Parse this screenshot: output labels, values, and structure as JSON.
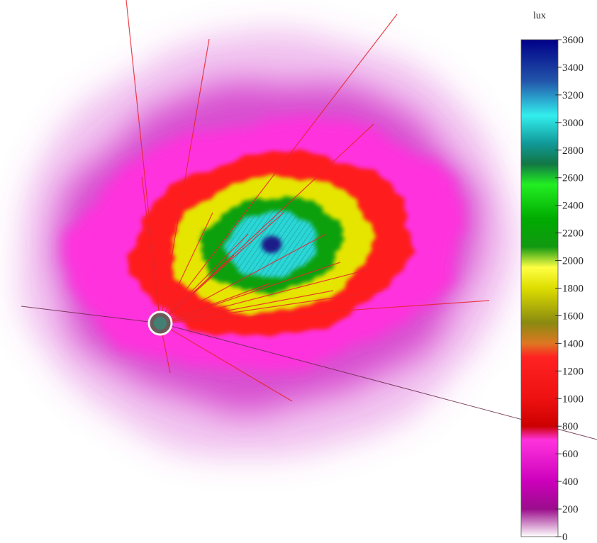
{
  "chart_data": {
    "type": "heatmap",
    "title": "",
    "colorbar": {
      "unit_label": "lux",
      "min": 0,
      "max": 3600,
      "ticks": [
        0,
        200,
        400,
        600,
        800,
        1000,
        1200,
        1400,
        1600,
        1800,
        2000,
        2200,
        2400,
        2600,
        2800,
        3000,
        3200,
        3400,
        3600
      ],
      "tick_labels": [
        "0",
        "200",
        "400",
        "600",
        "800",
        "1000",
        "1200",
        "1400",
        "1600",
        "1800",
        "2000",
        "2200",
        "2400",
        "2600",
        "2800",
        "3000",
        "3200",
        "3400",
        "3600"
      ],
      "colors": [
        {
          "value": 0,
          "color": "#ffffff"
        },
        {
          "value": 200,
          "color": "#9b0d8c"
        },
        {
          "value": 400,
          "color": "#cc00bb"
        },
        {
          "value": 700,
          "color": "#ff33dd"
        },
        {
          "value": 800,
          "color": "#cc0000"
        },
        {
          "value": 1000,
          "color": "#ee1111"
        },
        {
          "value": 1300,
          "color": "#ff2222"
        },
        {
          "value": 1400,
          "color": "#dd7722"
        },
        {
          "value": 1550,
          "color": "#8a8a10"
        },
        {
          "value": 1800,
          "color": "#dddd00"
        },
        {
          "value": 1950,
          "color": "#ffff44"
        },
        {
          "value": 2100,
          "color": "#119911"
        },
        {
          "value": 2300,
          "color": "#00aa00"
        },
        {
          "value": 2550,
          "color": "#22ee22"
        },
        {
          "value": 2700,
          "color": "#117744"
        },
        {
          "value": 2850,
          "color": "#119999"
        },
        {
          "value": 3050,
          "color": "#33eeee"
        },
        {
          "value": 3300,
          "color": "#2255aa"
        },
        {
          "value": 3600,
          "color": "#000088"
        }
      ]
    },
    "contour_levels": [
      {
        "value": 200,
        "color": "#d84fd0"
      },
      {
        "value": 600,
        "color": "#ff33dd"
      },
      {
        "value": 1000,
        "color": "#ff1a1a"
      },
      {
        "value": 1800,
        "color": "#e5e500"
      },
      {
        "value": 2200,
        "color": "#11a011"
      },
      {
        "value": 3000,
        "color": "#2ad6d6"
      },
      {
        "value": 3400,
        "color": "#1a1a88"
      }
    ],
    "peak_value": 3600
  }
}
